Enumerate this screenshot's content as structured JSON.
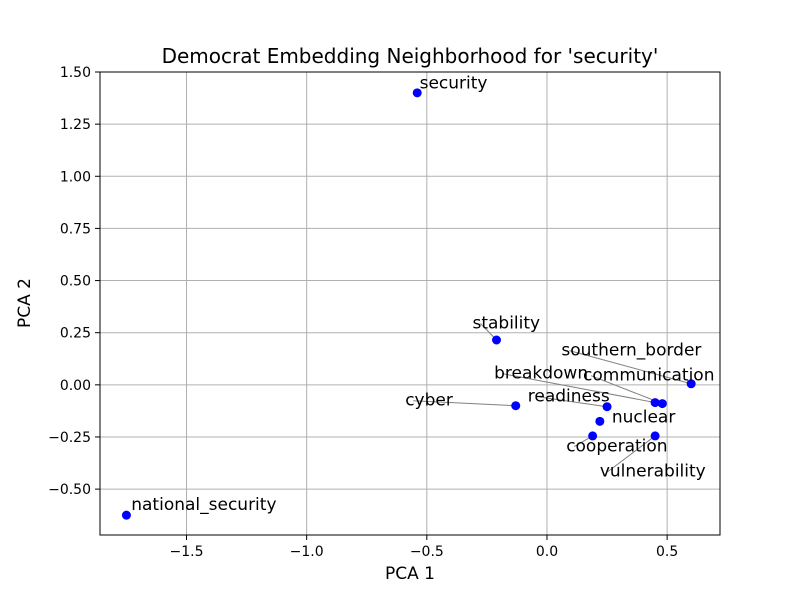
{
  "chart_data": {
    "type": "scatter",
    "title": "Democrat Embedding Neighborhood for 'security'",
    "xlabel": "PCA 1",
    "ylabel": "PCA 2",
    "xlim": [
      -1.86,
      0.72
    ],
    "ylim": [
      -0.72,
      1.5
    ],
    "xticks": [
      -1.5,
      -1.0,
      -0.5,
      0.0,
      0.5
    ],
    "xtick_labels": [
      "−1.5",
      "−1.0",
      "−0.5",
      "0.0",
      "0.5"
    ],
    "yticks": [
      -0.5,
      -0.25,
      0.0,
      0.25,
      0.5,
      0.75,
      1.0,
      1.25,
      1.5
    ],
    "ytick_labels": [
      "−0.50",
      "−0.25",
      "0.00",
      "0.25",
      "0.50",
      "0.75",
      "1.00",
      "1.25",
      "1.50"
    ],
    "grid": true,
    "marker_color": "#0000ff",
    "leader_color": "#808080",
    "points": [
      {
        "label": "security",
        "x": -0.54,
        "y": 1.4,
        "label_x": -0.53,
        "label_y": 1.42
      },
      {
        "label": "stability",
        "x": -0.21,
        "y": 0.215,
        "label_x": -0.31,
        "label_y": 0.27
      },
      {
        "label": "southern_border",
        "x": 0.6,
        "y": 0.005,
        "label_x": 0.06,
        "label_y": 0.14
      },
      {
        "label": "communication",
        "x": 0.48,
        "y": -0.09,
        "label_x": 0.15,
        "label_y": 0.02
      },
      {
        "label": "breakdown",
        "x": 0.45,
        "y": -0.085,
        "label_x": -0.22,
        "label_y": 0.03
      },
      {
        "label": "cyber",
        "x": -0.13,
        "y": -0.1,
        "label_x": -0.59,
        "label_y": -0.1
      },
      {
        "label": "readiness",
        "x": 0.25,
        "y": -0.105,
        "label_x": -0.08,
        "label_y": -0.08
      },
      {
        "label": "nuclear",
        "x": 0.22,
        "y": -0.175,
        "label_x": 0.27,
        "label_y": -0.18
      },
      {
        "label": "cooperation",
        "x": 0.19,
        "y": -0.245,
        "label_x": 0.08,
        "label_y": -0.32
      },
      {
        "label": "vulnerability",
        "x": 0.45,
        "y": -0.245,
        "label_x": 0.22,
        "label_y": -0.44
      },
      {
        "label": "national_security",
        "x": -1.75,
        "y": -0.625,
        "label_x": -1.73,
        "label_y": -0.6
      }
    ]
  }
}
